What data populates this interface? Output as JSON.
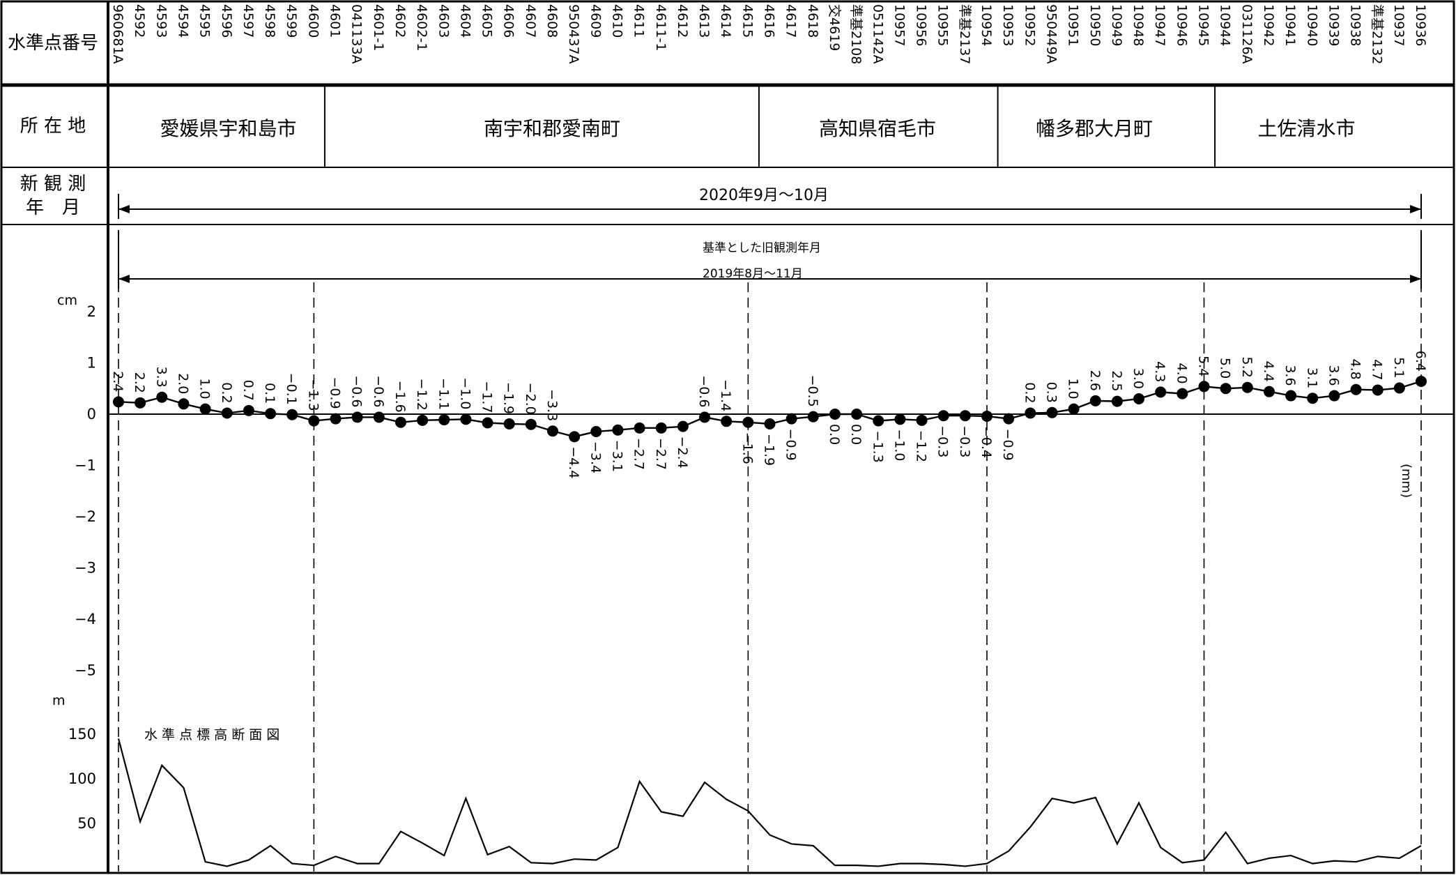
{
  "headers": {
    "station_number": "水準点番号",
    "location": "所 在 地",
    "new_obs": "新 観 測\n年　月"
  },
  "regions": [
    "愛媛県宇和島市",
    "南宇和郡愛南町",
    "高知県宿毛市",
    "幡多郡大月町",
    "土佐清水市"
  ],
  "new_obs_period": "2020年9月～10月",
  "old_obs_title": "基準とした旧観測年月",
  "old_obs_period": "2019年8月～11月",
  "units": {
    "left": "cm",
    "right": "(mm)",
    "elev": "m"
  },
  "elevation_title": "水 準 点 標 高 断 面 図",
  "chart_data": [
    {
      "type": "line",
      "title": "",
      "xlabel": "",
      "ylabel": "cm",
      "ylim": [
        -5,
        2
      ],
      "yticks": [
        2,
        1,
        0,
        -1,
        -2,
        -3,
        -4,
        -5
      ],
      "grid": false,
      "categories": [
        "960681A",
        "4592",
        "4593",
        "4594",
        "4595",
        "4596",
        "4597",
        "4598",
        "4599",
        "4600",
        "4601",
        "041133A",
        "4601-1",
        "4602",
        "4602-1",
        "4603",
        "4604",
        "4605",
        "4606",
        "4607",
        "4608",
        "950437A",
        "4609",
        "4610",
        "4611",
        "4611-1",
        "4612",
        "4613",
        "4614",
        "4615",
        "4616",
        "4617",
        "4618",
        "交4619",
        "準基2108",
        "051142A",
        "10957",
        "10956",
        "10955",
        "準基2137",
        "10954",
        "10953",
        "10952",
        "950449A",
        "10951",
        "10950",
        "10949",
        "10948",
        "10947",
        "10946",
        "10945",
        "10944",
        "031126A",
        "10942",
        "10941",
        "10940",
        "10939",
        "10938",
        "準基2132",
        "10937",
        "10936"
      ],
      "values_mm": [
        2.4,
        2.2,
        3.3,
        2.0,
        1.0,
        0.2,
        0.7,
        0.1,
        -0.1,
        -1.3,
        -0.9,
        -0.6,
        -0.6,
        -1.6,
        -1.2,
        -1.1,
        -1.0,
        -1.7,
        -1.9,
        -2.0,
        -3.3,
        -4.4,
        -3.4,
        -3.1,
        -2.7,
        -2.7,
        -2.4,
        -0.6,
        -1.4,
        -1.6,
        -1.9,
        -0.9,
        -0.5,
        0.0,
        0.0,
        -1.3,
        -1.0,
        -1.2,
        -0.3,
        -0.3,
        -0.4,
        -0.9,
        0.2,
        0.3,
        1.0,
        2.6,
        2.5,
        3.0,
        4.3,
        4.0,
        5.4,
        5.0,
        5.2,
        4.4,
        3.6,
        3.1,
        3.6,
        4.8,
        4.7,
        5.1,
        6.4
      ],
      "labels": [
        "2.4",
        "2.2",
        "3.3",
        "2.0",
        "1.0",
        "0.2",
        "0.7",
        "0.1",
        "-0.1",
        "-1.3",
        "-0.9",
        "-0.6",
        "-0.6",
        "-1.6",
        "-1.2",
        "-1.1",
        "-1.0",
        "-1.7",
        "-1.9",
        "-2.0",
        "-3.3",
        "-4.4",
        "-3.4",
        "-3.1",
        "-2.7",
        "-2.7",
        "-2.4",
        "-0.6",
        "-1.4",
        "-1.6",
        "-1.9",
        "-0.9",
        "-0.5",
        "0.0",
        "0.0",
        "-1.3",
        "-1.0",
        "-1.2",
        "-0.3",
        "-0.3",
        "-0.4",
        "-0.9",
        "0.2",
        "0.3",
        "1.0",
        "2.6",
        "2.5",
        "3.0",
        "4.3",
        "4.0",
        "5.4",
        "5.0",
        "5.2",
        "4.4",
        "3.6",
        "3.1",
        "3.6",
        "4.8",
        "4.7",
        "5.1",
        "6.4"
      ],
      "label_above": [
        true,
        true,
        true,
        true,
        true,
        true,
        true,
        true,
        true,
        true,
        true,
        true,
        true,
        true,
        true,
        true,
        true,
        true,
        true,
        true,
        true,
        false,
        false,
        false,
        false,
        false,
        false,
        true,
        true,
        false,
        false,
        false,
        true,
        false,
        false,
        false,
        false,
        false,
        false,
        false,
        false,
        false,
        true,
        true,
        true,
        true,
        true,
        true,
        true,
        true,
        true,
        true,
        true,
        true,
        true,
        true,
        true,
        true,
        true,
        true,
        true
      ]
    },
    {
      "type": "area",
      "title": "水 準 点 標 高 断 面 図",
      "ylabel": "m",
      "ylim": [
        0,
        160
      ],
      "yticks": [
        150,
        100,
        50
      ],
      "values": [
        145,
        52,
        115,
        90,
        7,
        2,
        9,
        25,
        5,
        3,
        13,
        5,
        5,
        41,
        28,
        14,
        78,
        15,
        24,
        6,
        5,
        10,
        9,
        23,
        97,
        63,
        58,
        96,
        77,
        64,
        37,
        27,
        25,
        3,
        3,
        2,
        5,
        5,
        4,
        2,
        5,
        19,
        46,
        78,
        73,
        79,
        27,
        73,
        23,
        6,
        9,
        40,
        5,
        11,
        14,
        5,
        8,
        7,
        13,
        11,
        25
      ]
    }
  ],
  "region_boundaries_after_index": [
    9,
    29,
    40,
    50
  ]
}
